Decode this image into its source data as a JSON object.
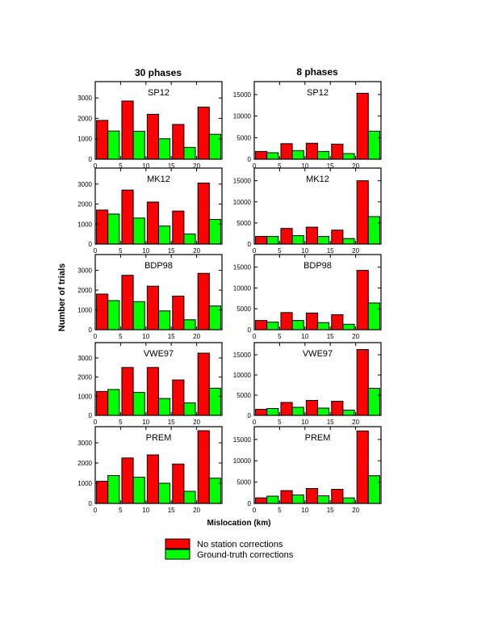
{
  "colors": {
    "no_corr": "#ff0000",
    "gt_corr": "#00ff00",
    "frame": "#000000"
  },
  "column_titles": [
    "30 phases",
    "8 phases"
  ],
  "ylabel": "Number of trials",
  "xlabel": "Mislocation (km)",
  "legend": {
    "placement": "bottom-center",
    "items": [
      {
        "label": "No station corrections",
        "color": "#ff0000"
      },
      {
        "label": "Ground-truth corrections",
        "color": "#00ff00"
      }
    ]
  },
  "chart_data": [
    {
      "type": "bar",
      "title": "SP12",
      "column": 0,
      "row": 0,
      "categories": [
        2.5,
        7.5,
        12.5,
        17.5,
        22.5
      ],
      "xlim": [
        0,
        25
      ],
      "xticks": [
        0,
        5,
        10,
        15,
        20
      ],
      "ylim": [
        0,
        3800
      ],
      "yticks": [
        1000,
        2000,
        3000
      ],
      "series": [
        {
          "name": "No station corrections",
          "values": [
            1900,
            2850,
            2200,
            1700,
            2550
          ]
        },
        {
          "name": "Ground-truth corrections",
          "values": [
            1380,
            1370,
            1000,
            580,
            1220
          ]
        }
      ]
    },
    {
      "type": "bar",
      "title": "SP12",
      "column": 1,
      "row": 0,
      "categories": [
        2.5,
        7.5,
        12.5,
        17.5,
        22.5
      ],
      "xlim": [
        0,
        25
      ],
      "xticks": [
        0,
        5,
        10,
        15,
        20
      ],
      "ylim": [
        0,
        18000
      ],
      "yticks": [
        5000,
        10000,
        15000
      ],
      "series": [
        {
          "name": "No station corrections",
          "values": [
            1800,
            3600,
            3700,
            3500,
            15300
          ]
        },
        {
          "name": "Ground-truth corrections",
          "values": [
            1500,
            2000,
            1800,
            1300,
            6500
          ]
        }
      ]
    },
    {
      "type": "bar",
      "title": "MK12",
      "column": 0,
      "row": 1,
      "categories": [
        2.5,
        7.5,
        12.5,
        17.5,
        22.5
      ],
      "xlim": [
        0,
        25
      ],
      "xticks": [
        0,
        5,
        10,
        15,
        20
      ],
      "ylim": [
        0,
        3800
      ],
      "yticks": [
        1000,
        2000,
        3000
      ],
      "series": [
        {
          "name": "No station corrections",
          "values": [
            1700,
            2700,
            2100,
            1650,
            3050
          ]
        },
        {
          "name": "Ground-truth corrections",
          "values": [
            1500,
            1300,
            900,
            500,
            1230
          ]
        }
      ]
    },
    {
      "type": "bar",
      "title": "MK12",
      "column": 1,
      "row": 1,
      "categories": [
        2.5,
        7.5,
        12.5,
        17.5,
        22.5
      ],
      "xlim": [
        0,
        25
      ],
      "xticks": [
        0,
        5,
        10,
        15,
        20
      ],
      "ylim": [
        0,
        18000
      ],
      "yticks": [
        5000,
        10000,
        15000
      ],
      "series": [
        {
          "name": "No station corrections",
          "values": [
            1800,
            3700,
            4000,
            3300,
            15000
          ]
        },
        {
          "name": "Ground-truth corrections",
          "values": [
            1800,
            2000,
            1800,
            1300,
            6500
          ]
        }
      ]
    },
    {
      "type": "bar",
      "title": "BDP98",
      "column": 0,
      "row": 2,
      "categories": [
        2.5,
        7.5,
        12.5,
        17.5,
        22.5
      ],
      "xlim": [
        0,
        25
      ],
      "xticks": [
        0,
        5,
        10,
        15,
        20
      ],
      "ylim": [
        0,
        3800
      ],
      "yticks": [
        1000,
        2000,
        3000
      ],
      "series": [
        {
          "name": "No station corrections",
          "values": [
            1800,
            2750,
            2200,
            1700,
            2850
          ]
        },
        {
          "name": "Ground-truth corrections",
          "values": [
            1470,
            1420,
            950,
            500,
            1200
          ]
        }
      ]
    },
    {
      "type": "bar",
      "title": "BDP98",
      "column": 1,
      "row": 2,
      "categories": [
        2.5,
        7.5,
        12.5,
        17.5,
        22.5
      ],
      "xlim": [
        0,
        25
      ],
      "xticks": [
        0,
        5,
        10,
        15,
        20
      ],
      "ylim": [
        0,
        18000
      ],
      "yticks": [
        5000,
        10000,
        15000
      ],
      "series": [
        {
          "name": "No station corrections",
          "values": [
            2200,
            4100,
            4000,
            3600,
            14200
          ]
        },
        {
          "name": "Ground-truth corrections",
          "values": [
            1800,
            2200,
            1700,
            1300,
            6400
          ]
        }
      ]
    },
    {
      "type": "bar",
      "title": "VWE97",
      "column": 0,
      "row": 3,
      "categories": [
        2.5,
        7.5,
        12.5,
        17.5,
        22.5
      ],
      "xlim": [
        0,
        25
      ],
      "xticks": [
        0,
        5,
        10,
        15,
        20
      ],
      "ylim": [
        0,
        3800
      ],
      "yticks": [
        1000,
        2000,
        3000
      ],
      "series": [
        {
          "name": "No station corrections",
          "values": [
            1250,
            2500,
            2500,
            1850,
            3250
          ]
        },
        {
          "name": "Ground-truth corrections",
          "values": [
            1350,
            1200,
            880,
            650,
            1420
          ]
        }
      ]
    },
    {
      "type": "bar",
      "title": "VWE97",
      "column": 1,
      "row": 3,
      "categories": [
        2.5,
        7.5,
        12.5,
        17.5,
        22.5
      ],
      "xlim": [
        0,
        25
      ],
      "xticks": [
        0,
        5,
        10,
        15,
        20
      ],
      "ylim": [
        0,
        18000
      ],
      "yticks": [
        5000,
        10000,
        15000
      ],
      "series": [
        {
          "name": "No station corrections",
          "values": [
            1500,
            3200,
            3700,
            3500,
            16300
          ]
        },
        {
          "name": "Ground-truth corrections",
          "values": [
            1700,
            2000,
            1800,
            1300,
            6700
          ]
        }
      ]
    },
    {
      "type": "bar",
      "title": "PREM",
      "column": 0,
      "row": 4,
      "categories": [
        2.5,
        7.5,
        12.5,
        17.5,
        22.5
      ],
      "xlim": [
        0,
        25
      ],
      "xticks": [
        0,
        5,
        10,
        15,
        20
      ],
      "ylim": [
        0,
        3800
      ],
      "yticks": [
        1000,
        2000,
        3000
      ],
      "series": [
        {
          "name": "No station corrections",
          "values": [
            1100,
            2250,
            2400,
            1950,
            3600
          ]
        },
        {
          "name": "Ground-truth corrections",
          "values": [
            1380,
            1300,
            1000,
            600,
            1250
          ]
        }
      ]
    },
    {
      "type": "bar",
      "title": "PREM",
      "column": 1,
      "row": 4,
      "categories": [
        2.5,
        7.5,
        12.5,
        17.5,
        22.5
      ],
      "xlim": [
        0,
        25
      ],
      "xticks": [
        0,
        5,
        10,
        15,
        20
      ],
      "ylim": [
        0,
        18000
      ],
      "yticks": [
        5000,
        10000,
        15000
      ],
      "series": [
        {
          "name": "No station corrections",
          "values": [
            1300,
            3000,
            3500,
            3300,
            17000
          ]
        },
        {
          "name": "Ground-truth corrections",
          "values": [
            1700,
            2000,
            1800,
            1300,
            6500
          ]
        }
      ]
    }
  ]
}
